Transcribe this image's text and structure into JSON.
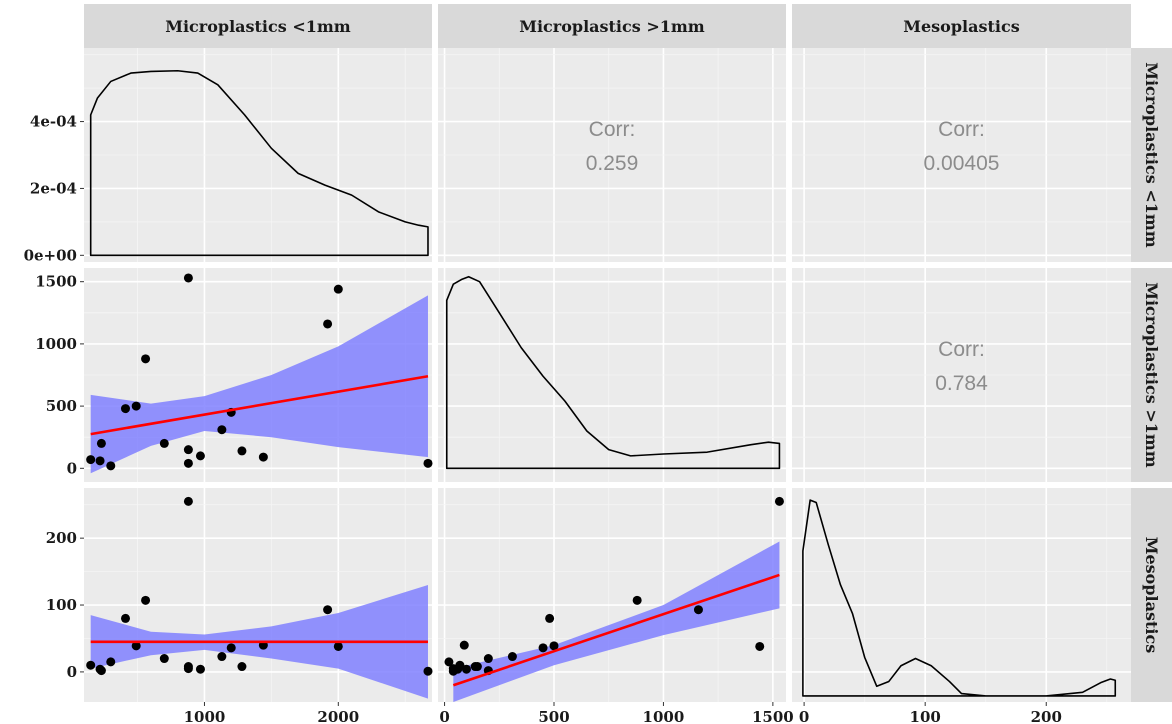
{
  "chart_data": {
    "type": "scatter",
    "variables": [
      "Microplastics <1mm",
      "Microplastics >1mm",
      "Mesoplastics"
    ],
    "row_strip_labels": [
      "Microplastics <1mm",
      "Microplastics >1mm",
      "Mesoplastics"
    ],
    "colors": {
      "points": "#000000",
      "fit_line": "#ff0000",
      "ribbon": "#8080ff",
      "density": "#000000",
      "corr_text": "#8c8c8c"
    },
    "axes": {
      "x": [
        {
          "range": [
            100,
            2700
          ],
          "ticks": [
            1000,
            2000
          ],
          "tick_labels": [
            "1000",
            "2000"
          ]
        },
        {
          "range": [
            -30,
            1560
          ],
          "ticks": [
            0,
            500,
            1000,
            1500
          ],
          "tick_labels": [
            "0",
            "500",
            "1000",
            "1500"
          ]
        },
        {
          "range": [
            -10,
            270
          ],
          "ticks": [
            0,
            100,
            200
          ],
          "tick_labels": [
            "0",
            "100",
            "200"
          ]
        }
      ],
      "y": [
        {
          "range": [
            -2e-05,
            0.00062
          ],
          "ticks": [
            0,
            0.0002,
            0.0004
          ],
          "tick_labels": [
            "0e+00",
            "2e-04",
            "4e-04"
          ]
        },
        {
          "range": [
            -110,
            1610
          ],
          "ticks": [
            0,
            500,
            1000,
            1500
          ],
          "tick_labels": [
            "0",
            "500",
            "1000",
            "1500"
          ]
        },
        {
          "range": [
            -45,
            275
          ],
          "ticks": [
            0,
            100,
            200
          ],
          "tick_labels": [
            "0",
            "100",
            "200"
          ]
        }
      ]
    },
    "correlations": [
      {
        "row": 0,
        "col": 1,
        "label": "Corr:",
        "value": "0.259"
      },
      {
        "row": 0,
        "col": 2,
        "label": "Corr:",
        "value": "0.00405"
      },
      {
        "row": 1,
        "col": 2,
        "label": "Corr:",
        "value": "0.784"
      }
    ],
    "points": [
      {
        "mp_small": 150,
        "mp_large": 70,
        "meso": 10
      },
      {
        "mp_small": 220,
        "mp_large": 60,
        "meso": 4
      },
      {
        "mp_small": 230,
        "mp_large": 200,
        "meso": 2
      },
      {
        "mp_small": 410,
        "mp_large": 480,
        "meso": 80
      },
      {
        "mp_small": 490,
        "mp_large": 500,
        "meso": 39
      },
      {
        "mp_small": 560,
        "mp_large": 880,
        "meso": 107
      },
      {
        "mp_small": 880,
        "mp_large": 1530,
        "meso": 255
      },
      {
        "mp_small": 880,
        "mp_large": 150,
        "meso": 8
      },
      {
        "mp_small": 880,
        "mp_large": 40,
        "meso": 5
      },
      {
        "mp_small": 970,
        "mp_large": 100,
        "meso": 4
      },
      {
        "mp_small": 1130,
        "mp_large": 310,
        "meso": 23
      },
      {
        "mp_small": 1200,
        "mp_large": 450,
        "meso": 36
      },
      {
        "mp_small": 1280,
        "mp_large": 140,
        "meso": 8
      },
      {
        "mp_small": 1440,
        "mp_large": 90,
        "meso": 40
      },
      {
        "mp_small": 1920,
        "mp_large": 1160,
        "meso": 93
      },
      {
        "mp_small": 2000,
        "mp_large": 1440,
        "meso": 38
      },
      {
        "mp_small": 2670,
        "mp_large": 40,
        "meso": 1
      },
      {
        "mp_small": 300,
        "mp_large": 20,
        "meso": 15
      },
      {
        "mp_small": 700,
        "mp_large": 200,
        "meso": 20
      }
    ],
    "fits": [
      {
        "row": 1,
        "col": 0,
        "line": [
          [
            150,
            275
          ],
          [
            2670,
            740
          ]
        ],
        "ribbon_upper": [
          [
            150,
            590
          ],
          [
            600,
            520
          ],
          [
            1000,
            580
          ],
          [
            1500,
            750
          ],
          [
            2000,
            980
          ],
          [
            2670,
            1390
          ]
        ],
        "ribbon_lower": [
          [
            150,
            -40
          ],
          [
            600,
            180
          ],
          [
            1000,
            300
          ],
          [
            1500,
            250
          ],
          [
            2000,
            170
          ],
          [
            2670,
            90
          ]
        ]
      },
      {
        "row": 2,
        "col": 0,
        "line": [
          [
            150,
            45
          ],
          [
            2670,
            45
          ]
        ],
        "ribbon_upper": [
          [
            150,
            85
          ],
          [
            600,
            60
          ],
          [
            1000,
            56
          ],
          [
            1500,
            68
          ],
          [
            2000,
            88
          ],
          [
            2670,
            130
          ]
        ],
        "ribbon_lower": [
          [
            150,
            5
          ],
          [
            600,
            25
          ],
          [
            1000,
            33
          ],
          [
            1500,
            20
          ],
          [
            2000,
            5
          ],
          [
            2670,
            -40
          ]
        ]
      },
      {
        "row": 2,
        "col": 1,
        "line": [
          [
            40,
            -20
          ],
          [
            1530,
            145
          ]
        ],
        "ribbon_upper": [
          [
            40,
            5
          ],
          [
            500,
            40
          ],
          [
            1000,
            100
          ],
          [
            1530,
            195
          ]
        ],
        "ribbon_lower": [
          [
            40,
            -45
          ],
          [
            500,
            10
          ],
          [
            1000,
            55
          ],
          [
            1530,
            95
          ]
        ]
      }
    ],
    "densities": [
      {
        "row": 0,
        "col": 0,
        "x_range": [
          150,
          2670
        ],
        "curve": [
          [
            150,
            0.00042
          ],
          [
            200,
            0.00047
          ],
          [
            300,
            0.00052
          ],
          [
            450,
            0.000545
          ],
          [
            600,
            0.00055
          ],
          [
            800,
            0.000552
          ],
          [
            950,
            0.000545
          ],
          [
            1100,
            0.00051
          ],
          [
            1300,
            0.00042
          ],
          [
            1500,
            0.00032
          ],
          [
            1700,
            0.000245
          ],
          [
            1900,
            0.00021
          ],
          [
            2100,
            0.00018
          ],
          [
            2300,
            0.00013
          ],
          [
            2500,
            0.0001
          ],
          [
            2600,
            9e-05
          ],
          [
            2670,
            8.5e-05
          ]
        ]
      },
      {
        "row": 1,
        "col": 1,
        "x_range": [
          10,
          1530
        ],
        "curve": [
          [
            10,
            1350
          ],
          [
            40,
            1480
          ],
          [
            80,
            1520
          ],
          [
            110,
            1540
          ],
          [
            160,
            1500
          ],
          [
            250,
            1250
          ],
          [
            350,
            970
          ],
          [
            450,
            740
          ],
          [
            550,
            540
          ],
          [
            650,
            300
          ],
          [
            750,
            150
          ],
          [
            850,
            100
          ],
          [
            1000,
            115
          ],
          [
            1200,
            130
          ],
          [
            1400,
            190
          ],
          [
            1480,
            210
          ],
          [
            1530,
            200
          ]
        ]
      },
      {
        "row": 2,
        "col": 2,
        "x_range": [
          -1,
          257
        ],
        "curve": [
          [
            -1,
            0.012
          ],
          [
            5,
            0.0162
          ],
          [
            10,
            0.016
          ],
          [
            20,
            0.0125
          ],
          [
            30,
            0.0092
          ],
          [
            40,
            0.0068
          ],
          [
            50,
            0.0032
          ],
          [
            60,
            0.0008
          ],
          [
            70,
            0.0012
          ],
          [
            80,
            0.0025
          ],
          [
            92,
            0.0031
          ],
          [
            105,
            0.0025
          ],
          [
            120,
            0.0012
          ],
          [
            130,
            0.0002
          ],
          [
            150,
            0
          ],
          [
            200,
            0
          ],
          [
            230,
            0.0003
          ],
          [
            245,
            0.0011
          ],
          [
            253,
            0.0014
          ],
          [
            257,
            0.0013
          ]
        ],
        "y_range": [
          -0.0005,
          0.0172
        ]
      }
    ]
  }
}
